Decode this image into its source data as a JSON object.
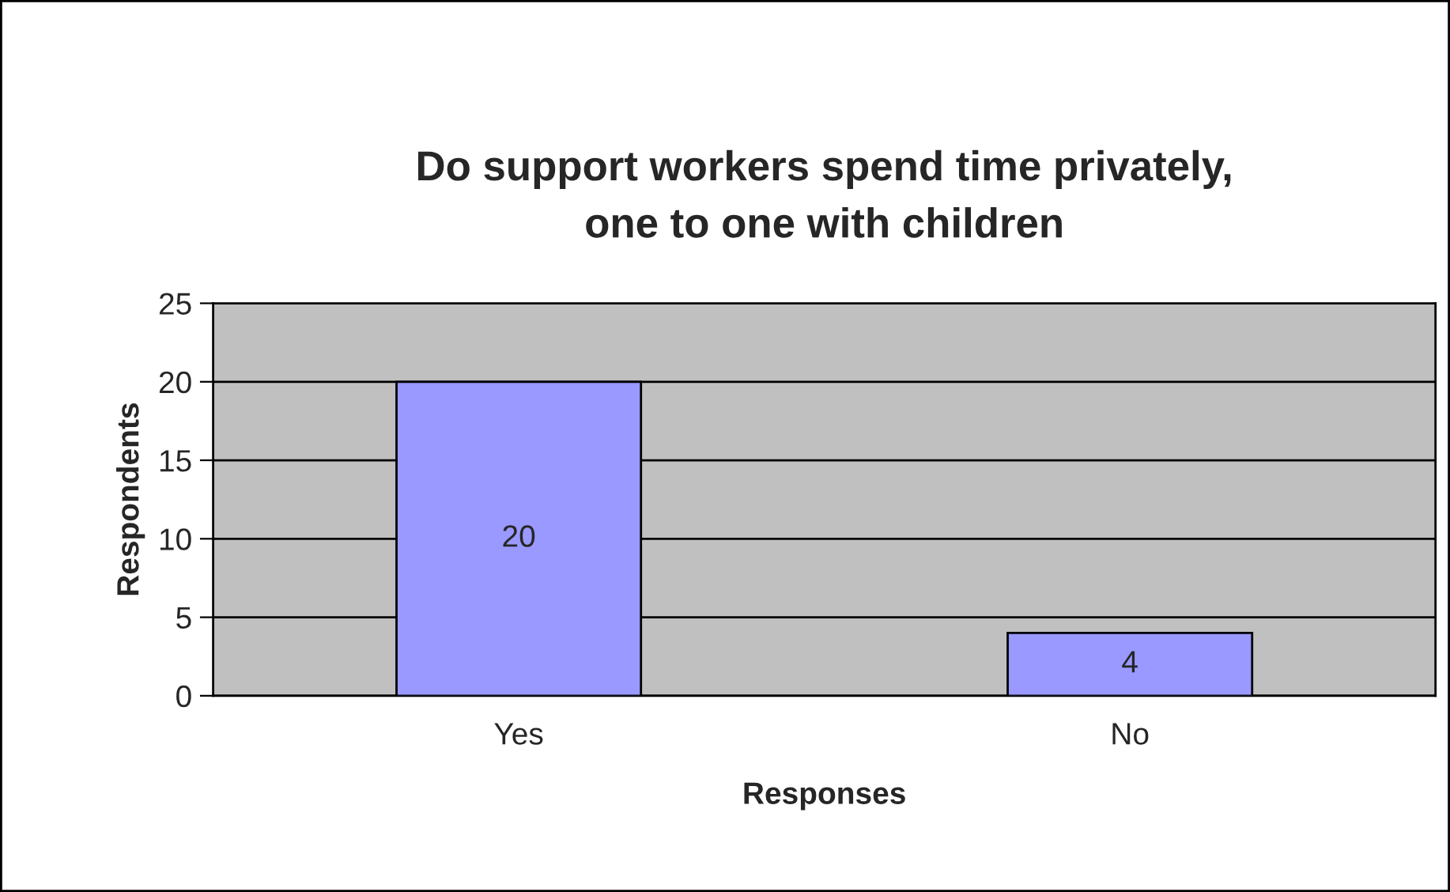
{
  "chart_data": {
    "type": "bar",
    "title": "Do support workers spend time privately,\none to one with children",
    "xlabel": "Responses",
    "ylabel": "Respondents",
    "categories": [
      "Yes",
      "No"
    ],
    "values": [
      20,
      4
    ],
    "color": "#9999ff",
    "ylim": [
      0,
      25
    ],
    "yticks": [
      0,
      5,
      10,
      15,
      20,
      25
    ],
    "grid": "y",
    "data_labels": true
  }
}
